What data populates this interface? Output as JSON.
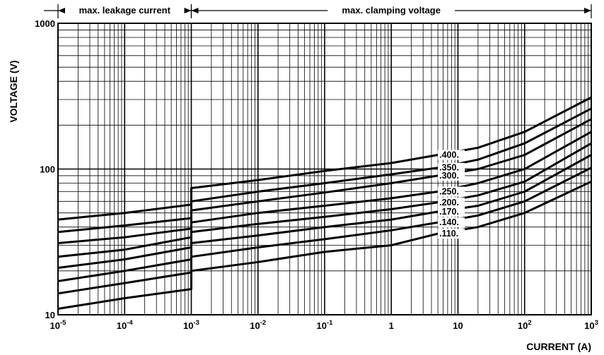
{
  "chart_data": {
    "type": "line",
    "title": "",
    "xlabel": "CURRENT (A)",
    "ylabel": "VOLTAGE (V)",
    "x_scale": "log",
    "y_scale": "log",
    "xlim": [
      1e-05,
      1000
    ],
    "ylim": [
      10,
      1000
    ],
    "grid": true,
    "x_ticks": [
      {
        "base": "10",
        "exp": "-5"
      },
      {
        "base": "10",
        "exp": "-4"
      },
      {
        "base": "10",
        "exp": "-3"
      },
      {
        "base": "10",
        "exp": "-2"
      },
      {
        "base": "10",
        "exp": "-1"
      },
      {
        "base": "1",
        "exp": ""
      },
      {
        "base": "10",
        "exp": ""
      },
      {
        "base": "10",
        "exp": "2"
      },
      {
        "base": "10",
        "exp": "3"
      }
    ],
    "y_ticks": [
      "10",
      "100",
      "1000"
    ],
    "regions": [
      {
        "label": "max. leakage current",
        "x_range": [
          1e-05,
          0.001
        ]
      },
      {
        "label": "max. clamping voltage",
        "x_range": [
          0.001,
          1000
        ]
      }
    ],
    "series": [
      {
        "name": ".400.",
        "x": [
          1e-05,
          0.0001,
          0.001,
          0.001,
          0.01,
          0.1,
          1,
          5,
          20,
          100,
          1000
        ],
        "y": [
          45,
          50,
          57,
          74,
          84,
          97,
          110,
          125,
          140,
          180,
          310
        ]
      },
      {
        "name": ".350.",
        "x": [
          1e-05,
          0.0001,
          0.001,
          0.001,
          0.01,
          0.1,
          1,
          5,
          20,
          100,
          1000
        ],
        "y": [
          37,
          41,
          46,
          60,
          70,
          80,
          92,
          102,
          116,
          150,
          260
        ]
      },
      {
        "name": ".300.",
        "x": [
          1e-05,
          0.0001,
          0.001,
          0.001,
          0.01,
          0.1,
          1,
          5,
          20,
          100,
          1000
        ],
        "y": [
          31,
          34,
          39,
          52,
          60,
          69,
          80,
          90,
          100,
          125,
          220
        ]
      },
      {
        "name": ".250.",
        "x": [
          1e-05,
          0.0001,
          0.001,
          0.001,
          0.01,
          0.1,
          1,
          5,
          20,
          100,
          1000
        ],
        "y": [
          25,
          28,
          34,
          43,
          50,
          56,
          63,
          70,
          80,
          100,
          180
        ]
      },
      {
        "name": ".200.",
        "x": [
          1e-05,
          0.0001,
          0.001,
          0.001,
          0.01,
          0.1,
          1,
          5,
          20,
          100,
          1000
        ],
        "y": [
          21,
          24,
          29,
          37,
          42,
          47,
          53,
          59,
          66,
          82,
          150
        ]
      },
      {
        "name": ".170.",
        "x": [
          1e-05,
          0.0001,
          0.001,
          0.001,
          0.01,
          0.1,
          1,
          5,
          20,
          100,
          1000
        ],
        "y": [
          17,
          20,
          24,
          31,
          35,
          40,
          45,
          51,
          56,
          70,
          125
        ]
      },
      {
        "name": ".140.",
        "x": [
          1e-05,
          0.0001,
          0.001,
          0.001,
          0.01,
          0.1,
          1,
          5,
          20,
          100,
          1000
        ],
        "y": [
          14,
          16.5,
          19.5,
          25,
          29,
          33,
          38,
          43,
          48,
          60,
          102
        ]
      },
      {
        "name": ".110.",
        "x": [
          1e-05,
          0.0001,
          0.001,
          0.001,
          0.01,
          0.1,
          1,
          5,
          20,
          100,
          1000
        ],
        "y": [
          11,
          13,
          15,
          20,
          23,
          27,
          30,
          36,
          40,
          50,
          82
        ]
      }
    ]
  }
}
